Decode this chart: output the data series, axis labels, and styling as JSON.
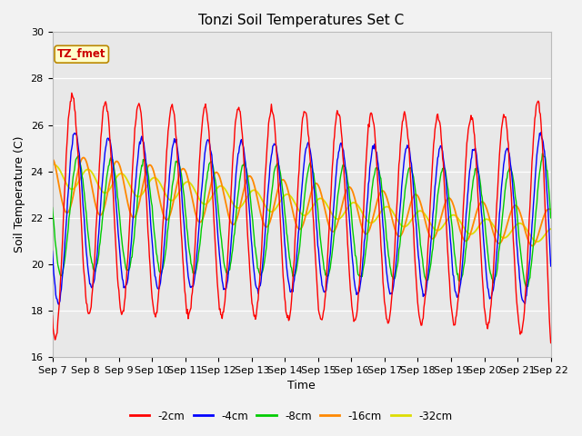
{
  "title": "Tonzi Soil Temperatures Set C",
  "xlabel": "Time",
  "ylabel": "Soil Temperature (C)",
  "ylim": [
    16,
    30
  ],
  "annotation_text": "TZ_fmet",
  "legend_labels": [
    "-2cm",
    "-4cm",
    "-8cm",
    "-16cm",
    "-32cm"
  ],
  "legend_colors": [
    "#ff0000",
    "#0000ff",
    "#00cc00",
    "#ff8800",
    "#dddd00"
  ],
  "xtick_labels": [
    "Sep 7",
    "Sep 8",
    "Sep 9",
    "Sep 10",
    "Sep 11",
    "Sep 12",
    "Sep 13",
    "Sep 14",
    "Sep 15",
    "Sep 16",
    "Sep 17",
    "Sep 18",
    "Sep 19",
    "Sep 20",
    "Sep 21",
    "Sep 22"
  ],
  "plot_bg": "#e8e8e8",
  "fig_bg": "#f2f2f2",
  "title_fontsize": 11,
  "axis_fontsize": 9,
  "tick_fontsize": 8
}
